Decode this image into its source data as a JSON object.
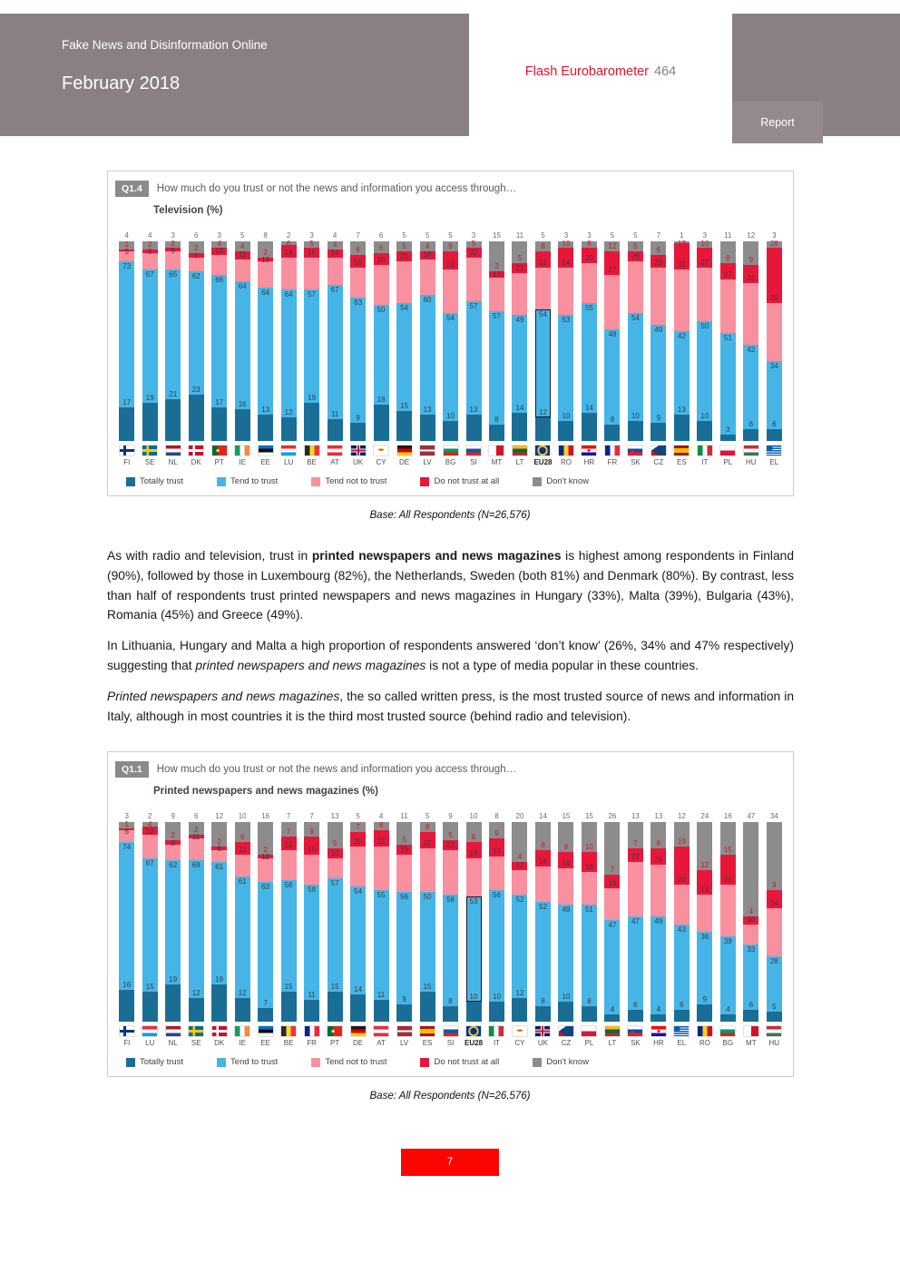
{
  "header": {
    "title": "Fake News and Disinformation Online",
    "date": "February 2018",
    "series_label": "Flash Eurobarometer",
    "series_number": "464",
    "report_label": "Report"
  },
  "colors": {
    "totally_trust": "#1a6e96",
    "tend_to_trust": "#45b5e8",
    "tend_not_to_trust": "#f9909f",
    "do_not_trust": "#e8173a",
    "dont_know": "#8c8c8c",
    "accent_red": "#e8112d",
    "header_band": "#8a8084",
    "page_number_red": "#fb0500"
  },
  "legend": [
    {
      "key": "totally_trust",
      "label": "Totally trust"
    },
    {
      "key": "tend_to_trust",
      "label": "Tend to trust"
    },
    {
      "key": "tend_not_to_trust",
      "label": "Tend not to trust"
    },
    {
      "key": "do_not_trust",
      "label": "Do not trust at all"
    },
    {
      "key": "dont_know",
      "label": "Don't know"
    }
  ],
  "base_note": "Base: All Respondents (N=26,576)",
  "chart_data": [
    {
      "type": "bar",
      "stacked": true,
      "id": "Q1.4",
      "question": "How much do you trust or not the news and information you access through…",
      "title": "Television  (%)",
      "ylim": [
        0,
        100
      ],
      "legend_position": "bottom",
      "highlight": "EU28",
      "countries": [
        "FI",
        "SE",
        "NL",
        "DK",
        "PT",
        "IE",
        "EE",
        "LU",
        "BE",
        "AT",
        "UK",
        "CY",
        "DE",
        "LV",
        "BG",
        "SI",
        "MT",
        "LT",
        "EU28",
        "RO",
        "HR",
        "FR",
        "SK",
        "CZ",
        "ES",
        "IT",
        "PL",
        "HU",
        "EL"
      ],
      "series": [
        {
          "key": "totally_trust",
          "name": "Totally trust",
          "values": [
            17,
            19,
            21,
            23,
            17,
            16,
            13,
            12,
            19,
            11,
            9,
            18,
            15,
            13,
            10,
            13,
            8,
            14,
            12,
            10,
            14,
            8,
            10,
            9,
            13,
            10,
            3,
            6,
            6
          ]
        },
        {
          "key": "tend_to_trust",
          "name": "Tend to trust",
          "values": [
            73,
            67,
            65,
            62,
            66,
            64,
            64,
            64,
            57,
            67,
            63,
            50,
            54,
            60,
            54,
            57,
            57,
            49,
            54,
            53,
            55,
            48,
            54,
            49,
            42,
            50,
            51,
            42,
            34
          ]
        },
        {
          "key": "tend_not_to_trust",
          "name": "Tend not to trust",
          "values": [
            5,
            8,
            9,
            7,
            10,
            11,
            13,
            16,
            16,
            14,
            15,
            20,
            21,
            18,
            22,
            22,
            17,
            21,
            21,
            24,
            20,
            27,
            26,
            29,
            31,
            27,
            27,
            31,
            29
          ]
        },
        {
          "key": "do_not_trust",
          "name": "Do not trust at all",
          "values": [
            1,
            2,
            2,
            2,
            4,
            4,
            2,
            6,
            5,
            4,
            6,
            6,
            5,
            4,
            9,
            5,
            3,
            5,
            8,
            10,
            8,
            12,
            5,
            6,
            13,
            10,
            8,
            9,
            28
          ]
        },
        {
          "key": "dont_know",
          "name": "Don't know",
          "values": [
            4,
            4,
            3,
            6,
            3,
            5,
            8,
            2,
            3,
            4,
            7,
            6,
            5,
            5,
            5,
            3,
            15,
            11,
            5,
            3,
            3,
            5,
            5,
            7,
            1,
            3,
            11,
            12,
            3
          ]
        }
      ]
    },
    {
      "type": "bar",
      "stacked": true,
      "id": "Q1.1",
      "question": "How much do you trust or not the news and information you access through…",
      "title": "Printed newspapers and news magazines  (%)",
      "ylim": [
        0,
        100
      ],
      "legend_position": "bottom",
      "highlight": "EU28",
      "countries": [
        "FI",
        "LU",
        "NL",
        "SE",
        "DK",
        "IE",
        "EE",
        "BE",
        "FR",
        "PT",
        "DE",
        "AT",
        "LV",
        "ES",
        "SI",
        "EU28",
        "IT",
        "CY",
        "UK",
        "CZ",
        "PL",
        "LT",
        "SK",
        "HR",
        "EL",
        "RO",
        "BG",
        "MT",
        "HU"
      ],
      "series": [
        {
          "key": "totally_trust",
          "name": "Totally trust",
          "values": [
            16,
            15,
            19,
            12,
            19,
            12,
            7,
            15,
            11,
            15,
            14,
            11,
            9,
            15,
            8,
            10,
            10,
            12,
            8,
            10,
            8,
            4,
            6,
            4,
            6,
            9,
            4,
            6,
            5
          ]
        },
        {
          "key": "tend_to_trust",
          "name": "Tend to trust",
          "values": [
            74,
            67,
            62,
            69,
            61,
            61,
            63,
            56,
            58,
            57,
            54,
            55,
            56,
            50,
            56,
            53,
            56,
            52,
            52,
            49,
            51,
            47,
            47,
            49,
            43,
            36,
            39,
            33,
            28
          ]
        },
        {
          "key": "tend_not_to_trust",
          "name": "Tend not to trust",
          "values": [
            6,
            12,
            8,
            11,
            6,
            11,
            12,
            15,
            15,
            10,
            20,
            22,
            19,
            22,
            22,
            19,
            17,
            12,
            18,
            18,
            16,
            16,
            27,
            26,
            20,
            19,
            26,
            10,
            24
          ]
        },
        {
          "key": "do_not_trust",
          "name": "Do not trust at all",
          "values": [
            1,
            4,
            2,
            2,
            2,
            6,
            2,
            7,
            9,
            5,
            7,
            8,
            5,
            8,
            5,
            8,
            9,
            4,
            8,
            8,
            10,
            7,
            7,
            8,
            19,
            12,
            15,
            4,
            9
          ]
        },
        {
          "key": "dont_know",
          "name": "Don't know",
          "values": [
            3,
            2,
            9,
            6,
            12,
            10,
            16,
            7,
            7,
            13,
            5,
            4,
            11,
            5,
            9,
            10,
            8,
            20,
            14,
            15,
            15,
            26,
            13,
            13,
            12,
            24,
            16,
            47,
            34
          ]
        }
      ]
    }
  ],
  "body": {
    "p1": {
      "t1": "As with radio and television, trust in ",
      "b": "printed newspapers and news magazines",
      "t2": " is highest among respondents in Finland (90%), followed by those in Luxembourg (82%), the Netherlands, Sweden (both 81%) and Denmark (80%). By contrast, less than half of respondents trust printed newspapers and news magazines in Hungary (33%), Malta (39%), Bulgaria (43%), Romania (45%) and Greece (49%)."
    },
    "p2": {
      "t1": "In Lithuania, Hungary and Malta a high proportion of respondents answered ‘don’t know’ (26%, 34% and 47% respectively) suggesting that ",
      "i": "printed newspapers and news magazines",
      "t2": " is not a type of media popular in these countries."
    },
    "p3": {
      "i": "Printed newspapers and news magazines",
      "t2": ", the so called written press, is the most trusted source of news and information in Italy, although in most countries it is the third most trusted source (behind radio and television)."
    }
  },
  "footer": {
    "page_number": "7"
  }
}
